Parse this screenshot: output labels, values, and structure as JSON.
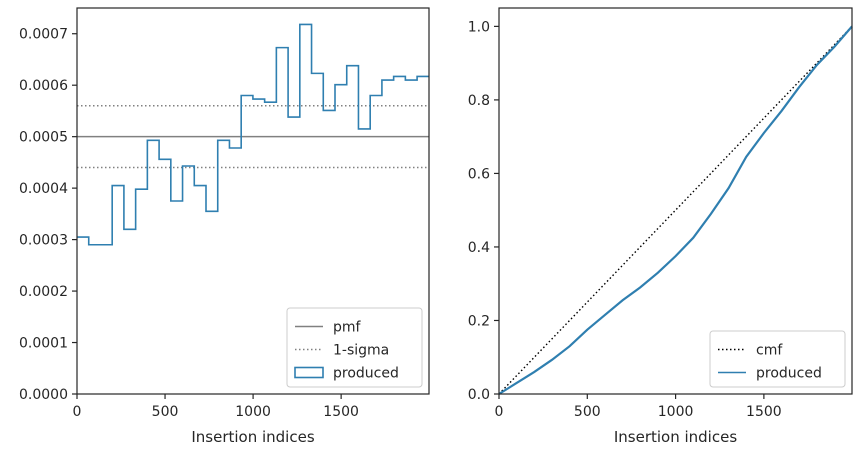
{
  "chart_data": [
    {
      "type": "line",
      "title": "",
      "xlabel": "Insertion indices",
      "ylabel": "",
      "xlim": [
        0,
        1999
      ],
      "ylim": [
        0,
        0.00075
      ],
      "xticks": [
        0,
        500,
        1000,
        1500
      ],
      "xtick_labels": [
        "0",
        "500",
        "1000",
        "1500"
      ],
      "yticks": [
        0,
        0.0001,
        0.0002,
        0.0003,
        0.0004,
        0.0005,
        0.0006,
        0.0007
      ],
      "ytick_labels": [
        "0.0000",
        "0.0001",
        "0.0002",
        "0.0003",
        "0.0004",
        "0.0005",
        "0.0006",
        "0.0007"
      ],
      "grid": false,
      "legend_position": "bottom-right",
      "series": [
        {
          "name": "pmf",
          "style": "solid",
          "color": "#808080",
          "y": 0.0005
        },
        {
          "name": "1-sigma",
          "style": "dotted",
          "color": "#808080",
          "y": [
            0.00044,
            0.00056
          ]
        },
        {
          "name": "produced",
          "style": "step",
          "color": "#2f7fb0",
          "bin_width": 66.6,
          "values": [
            0.000305,
            0.00029,
            0.00029,
            0.000405,
            0.00032,
            0.000398,
            0.000493,
            0.000456,
            0.000375,
            0.000443,
            0.000405,
            0.000355,
            0.000493,
            0.000478,
            0.00058,
            0.000573,
            0.000567,
            0.000673,
            0.000538,
            0.000718,
            0.000623,
            0.000551,
            0.000601,
            0.000638,
            0.000515,
            0.00058,
            0.00061,
            0.000617,
            0.00061,
            0.000617
          ]
        }
      ]
    },
    {
      "type": "line",
      "title": "",
      "xlabel": "Insertion indices",
      "ylabel": "",
      "xlim": [
        0,
        1999
      ],
      "ylim": [
        0,
        1.05
      ],
      "xticks": [
        0,
        500,
        1000,
        1500
      ],
      "xtick_labels": [
        "0",
        "500",
        "1000",
        "1500"
      ],
      "yticks": [
        0,
        0.2,
        0.4,
        0.6,
        0.8,
        1.0
      ],
      "ytick_labels": [
        "0.0",
        "0.2",
        "0.4",
        "0.6",
        "0.8",
        "1.0"
      ],
      "grid": false,
      "legend_position": "bottom-right",
      "series": [
        {
          "name": "cmf",
          "style": "dotted",
          "color": "#000000",
          "x": [
            0,
            1999
          ],
          "y": [
            0,
            1.0
          ]
        },
        {
          "name": "produced",
          "style": "solid",
          "color": "#2f7fb0",
          "x": [
            0,
            100,
            200,
            300,
            400,
            500,
            600,
            700,
            800,
            900,
            1000,
            1100,
            1200,
            1300,
            1400,
            1500,
            1600,
            1700,
            1800,
            1900,
            1999
          ],
          "y": [
            0,
            0.03,
            0.06,
            0.093,
            0.13,
            0.175,
            0.215,
            0.255,
            0.29,
            0.33,
            0.375,
            0.425,
            0.49,
            0.56,
            0.645,
            0.71,
            0.77,
            0.835,
            0.895,
            0.945,
            1.0
          ]
        }
      ]
    }
  ]
}
